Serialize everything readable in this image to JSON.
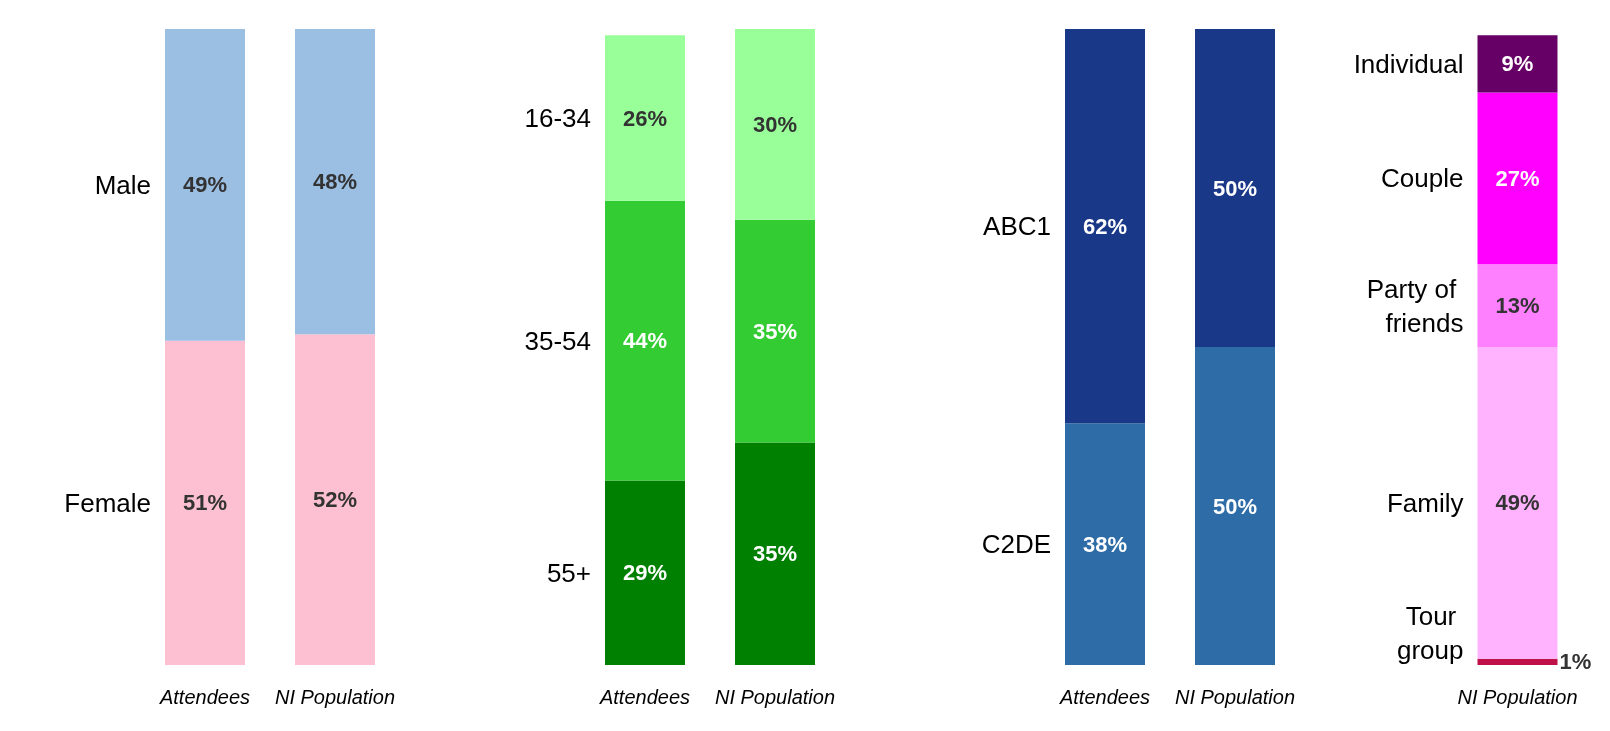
{
  "chart_data": [
    {
      "type": "bar",
      "stacked": true,
      "categories": [
        "Attendees",
        "NI Population"
      ],
      "series": [
        {
          "name": "Female",
          "color": "#fcc0d2",
          "values": [
            51,
            52
          ],
          "value_labels": [
            "51%",
            "52%"
          ]
        },
        {
          "name": "Male",
          "color": "#9bbfe3",
          "values": [
            49,
            48
          ],
          "value_labels": [
            "49%",
            "48%"
          ]
        }
      ]
    },
    {
      "type": "bar",
      "stacked": true,
      "categories": [
        "Attendees",
        "NI Population"
      ],
      "series": [
        {
          "name": "55+",
          "color": "#008000",
          "values": [
            29,
            35
          ],
          "value_labels": [
            "29%",
            "35%"
          ]
        },
        {
          "name": "35-54",
          "color": "#33cc33",
          "values": [
            44,
            35
          ],
          "value_labels": [
            "44%",
            "35%"
          ]
        },
        {
          "name": "16-34",
          "color": "#99ff99",
          "values": [
            26,
            30
          ],
          "value_labels": [
            "26%",
            "30%"
          ]
        }
      ]
    },
    {
      "type": "bar",
      "stacked": true,
      "categories": [
        "Attendees",
        "NI Population"
      ],
      "series": [
        {
          "name": "C2DE",
          "color": "#2e6ca8",
          "values": [
            38,
            50
          ],
          "value_labels": [
            "38%",
            "50%"
          ]
        },
        {
          "name": "ABC1",
          "color": "#1a3888",
          "values": [
            62,
            50
          ],
          "value_labels": [
            "62%",
            "50%"
          ]
        }
      ]
    },
    {
      "type": "bar",
      "stacked": true,
      "categories": [
        "NI Population"
      ],
      "series": [
        {
          "name": "Tour group",
          "color": "#c0104a",
          "values": [
            1
          ],
          "value_labels": [
            "1%"
          ]
        },
        {
          "name": "Family",
          "color": "#ffb3ff",
          "values": [
            49
          ],
          "value_labels": [
            "49%"
          ]
        },
        {
          "name": "Party of friends",
          "color": "#ff80ff",
          "values": [
            13
          ],
          "value_labels": [
            "13%"
          ]
        },
        {
          "name": "Couple",
          "color": "#ff00ff",
          "values": [
            27
          ],
          "value_labels": [
            "27%"
          ]
        },
        {
          "name": "Individual",
          "color": "#660066",
          "values": [
            9
          ],
          "value_labels": [
            "9%"
          ]
        }
      ]
    }
  ]
}
